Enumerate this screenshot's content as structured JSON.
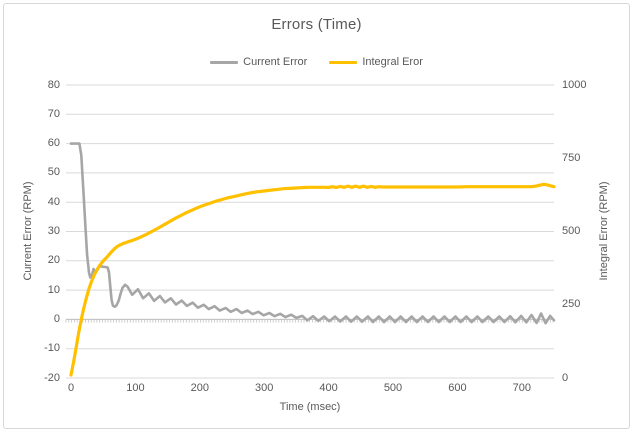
{
  "window": {
    "background": "#ffffff",
    "border_color": "#d7d7d7"
  },
  "colors": {
    "title_text": "#595959",
    "axis_text": "#595959",
    "gridline": "#d9d9d9",
    "axis_line": "#bfbfbf",
    "category_tick": "#c9c9c9",
    "series_current": "#a6a6a6",
    "series_integral": "#ffc000"
  },
  "chart_data": {
    "type": "line",
    "title": "Errors (Time)",
    "xlabel": "Time (msec)",
    "ylabel_left": "Current Error (RPM)",
    "ylabel_right": "Integral Error (RPM)",
    "x_range": [
      0,
      750
    ],
    "x_ticks": [
      0,
      100,
      200,
      300,
      400,
      500,
      600,
      700
    ],
    "y_left_range": [
      -20,
      80
    ],
    "y_left_ticks": [
      80,
      70,
      60,
      50,
      40,
      30,
      20,
      10,
      0,
      -10,
      -20
    ],
    "y_right_range": [
      0,
      1000
    ],
    "y_right_ticks": [
      1000,
      750,
      500,
      250,
      0
    ],
    "grid": "horizontal",
    "legend_position": "top",
    "series": [
      {
        "name": "Current Error",
        "axis": "left",
        "color": "#a6a6a6",
        "width": 2.6,
        "points": [
          [
            0,
            60
          ],
          [
            13,
            60
          ],
          [
            16,
            56
          ],
          [
            19,
            45
          ],
          [
            22,
            33
          ],
          [
            25,
            22
          ],
          [
            28,
            16
          ],
          [
            30,
            14.3
          ],
          [
            33,
            15.4
          ],
          [
            35,
            17.2
          ],
          [
            37,
            16.5
          ],
          [
            40,
            16.6
          ],
          [
            43,
            17.7
          ],
          [
            45,
            18.2
          ],
          [
            49,
            18
          ],
          [
            53,
            17.9
          ],
          [
            57,
            17.7
          ],
          [
            59,
            16
          ],
          [
            61,
            11.2
          ],
          [
            63,
            6.6
          ],
          [
            65,
            4.7
          ],
          [
            68,
            4.3
          ],
          [
            71,
            4.9
          ],
          [
            74,
            6.4
          ],
          [
            77,
            8.8
          ],
          [
            80,
            10.8
          ],
          [
            84,
            11.8
          ],
          [
            88,
            11.1
          ],
          [
            95,
            8.4
          ],
          [
            104,
            10.3
          ],
          [
            112,
            7.2
          ],
          [
            121,
            8.9
          ],
          [
            129,
            6.3
          ],
          [
            138,
            8
          ],
          [
            146,
            5.8
          ],
          [
            155,
            7.2
          ],
          [
            163,
            5.1
          ],
          [
            172,
            6.4
          ],
          [
            180,
            4.6
          ],
          [
            189,
            5.7
          ],
          [
            197,
            4
          ],
          [
            206,
            5
          ],
          [
            214,
            3.5
          ],
          [
            223,
            4.5
          ],
          [
            231,
            3
          ],
          [
            240,
            3.9
          ],
          [
            248,
            2.6
          ],
          [
            257,
            3.5
          ],
          [
            265,
            2.2
          ],
          [
            274,
            3
          ],
          [
            282,
            1.8
          ],
          [
            291,
            2.6
          ],
          [
            299,
            1.4
          ],
          [
            308,
            2.2
          ],
          [
            316,
            1.1
          ],
          [
            325,
            1.9
          ],
          [
            333,
            0.8
          ],
          [
            342,
            1.6
          ],
          [
            350,
            0.5
          ],
          [
            359,
            1.2
          ],
          [
            367,
            -0.3
          ],
          [
            376,
            1.1
          ],
          [
            384,
            -0.5
          ],
          [
            393,
            1
          ],
          [
            401,
            -0.6
          ],
          [
            410,
            1
          ],
          [
            418,
            -0.7
          ],
          [
            427,
            1
          ],
          [
            435,
            -0.8
          ],
          [
            444,
            1
          ],
          [
            452,
            -0.8
          ],
          [
            461,
            1
          ],
          [
            469,
            -0.9
          ],
          [
            478,
            1
          ],
          [
            486,
            -0.9
          ],
          [
            495,
            1
          ],
          [
            503,
            -0.9
          ],
          [
            512,
            1
          ],
          [
            520,
            -0.9
          ],
          [
            529,
            1
          ],
          [
            537,
            -0.9
          ],
          [
            546,
            1
          ],
          [
            554,
            -0.9
          ],
          [
            563,
            1
          ],
          [
            571,
            -0.9
          ],
          [
            580,
            1
          ],
          [
            588,
            -0.9
          ],
          [
            597,
            1
          ],
          [
            605,
            -0.9
          ],
          [
            614,
            1
          ],
          [
            622,
            -0.9
          ],
          [
            631,
            1
          ],
          [
            639,
            -0.9
          ],
          [
            648,
            1
          ],
          [
            656,
            -0.9
          ],
          [
            665,
            1
          ],
          [
            673,
            -0.9
          ],
          [
            682,
            1.1
          ],
          [
            690,
            -1
          ],
          [
            699,
            1.2
          ],
          [
            707,
            -1
          ],
          [
            715,
            1.5
          ],
          [
            723,
            -1.2
          ],
          [
            730,
            2
          ],
          [
            737,
            -1.3
          ],
          [
            744,
            1.2
          ],
          [
            750,
            -0.3
          ]
        ]
      },
      {
        "name": "Integral Eror",
        "axis": "right",
        "color": "#ffc000",
        "width": 3.2,
        "points": [
          [
            0,
            10
          ],
          [
            4,
            55
          ],
          [
            8,
            105
          ],
          [
            12,
            155
          ],
          [
            16,
            200
          ],
          [
            20,
            240
          ],
          [
            24,
            275
          ],
          [
            28,
            305
          ],
          [
            32,
            330
          ],
          [
            36,
            352
          ],
          [
            40,
            368
          ],
          [
            44,
            382
          ],
          [
            48,
            394
          ],
          [
            52,
            404
          ],
          [
            56,
            413
          ],
          [
            60,
            423
          ],
          [
            64,
            433
          ],
          [
            68,
            442
          ],
          [
            72,
            449
          ],
          [
            76,
            454
          ],
          [
            80,
            458
          ],
          [
            85,
            462
          ],
          [
            90,
            466
          ],
          [
            96,
            470
          ],
          [
            102,
            475
          ],
          [
            108,
            481
          ],
          [
            115,
            488
          ],
          [
            122,
            496
          ],
          [
            130,
            505
          ],
          [
            138,
            515
          ],
          [
            146,
            525
          ],
          [
            154,
            535
          ],
          [
            162,
            545
          ],
          [
            170,
            554
          ],
          [
            178,
            563
          ],
          [
            186,
            571
          ],
          [
            194,
            579
          ],
          [
            202,
            586
          ],
          [
            210,
            592
          ],
          [
            218,
            598
          ],
          [
            226,
            604
          ],
          [
            234,
            609
          ],
          [
            242,
            614
          ],
          [
            250,
            618
          ],
          [
            258,
            622
          ],
          [
            266,
            626
          ],
          [
            274,
            630
          ],
          [
            282,
            633
          ],
          [
            290,
            636
          ],
          [
            298,
            638
          ],
          [
            306,
            640
          ],
          [
            314,
            642
          ],
          [
            322,
            644
          ],
          [
            330,
            646
          ],
          [
            338,
            647
          ],
          [
            346,
            648
          ],
          [
            354,
            649
          ],
          [
            362,
            650
          ],
          [
            370,
            651
          ],
          [
            378,
            651
          ],
          [
            386,
            651
          ],
          [
            394,
            651
          ],
          [
            400,
            650
          ],
          [
            406,
            653
          ],
          [
            412,
            650
          ],
          [
            418,
            654
          ],
          [
            424,
            651
          ],
          [
            430,
            655
          ],
          [
            436,
            651
          ],
          [
            442,
            655
          ],
          [
            448,
            651
          ],
          [
            454,
            655
          ],
          [
            460,
            651
          ],
          [
            466,
            654
          ],
          [
            472,
            651
          ],
          [
            478,
            653
          ],
          [
            485,
            652
          ],
          [
            495,
            652
          ],
          [
            510,
            652
          ],
          [
            525,
            652
          ],
          [
            540,
            652
          ],
          [
            555,
            652
          ],
          [
            570,
            652
          ],
          [
            585,
            652
          ],
          [
            600,
            652
          ],
          [
            615,
            653
          ],
          [
            630,
            653
          ],
          [
            645,
            653
          ],
          [
            660,
            653
          ],
          [
            675,
            653
          ],
          [
            690,
            653
          ],
          [
            705,
            653
          ],
          [
            715,
            653
          ],
          [
            722,
            655
          ],
          [
            728,
            658
          ],
          [
            734,
            661
          ],
          [
            740,
            659
          ],
          [
            746,
            655
          ],
          [
            750,
            653
          ]
        ]
      }
    ]
  }
}
